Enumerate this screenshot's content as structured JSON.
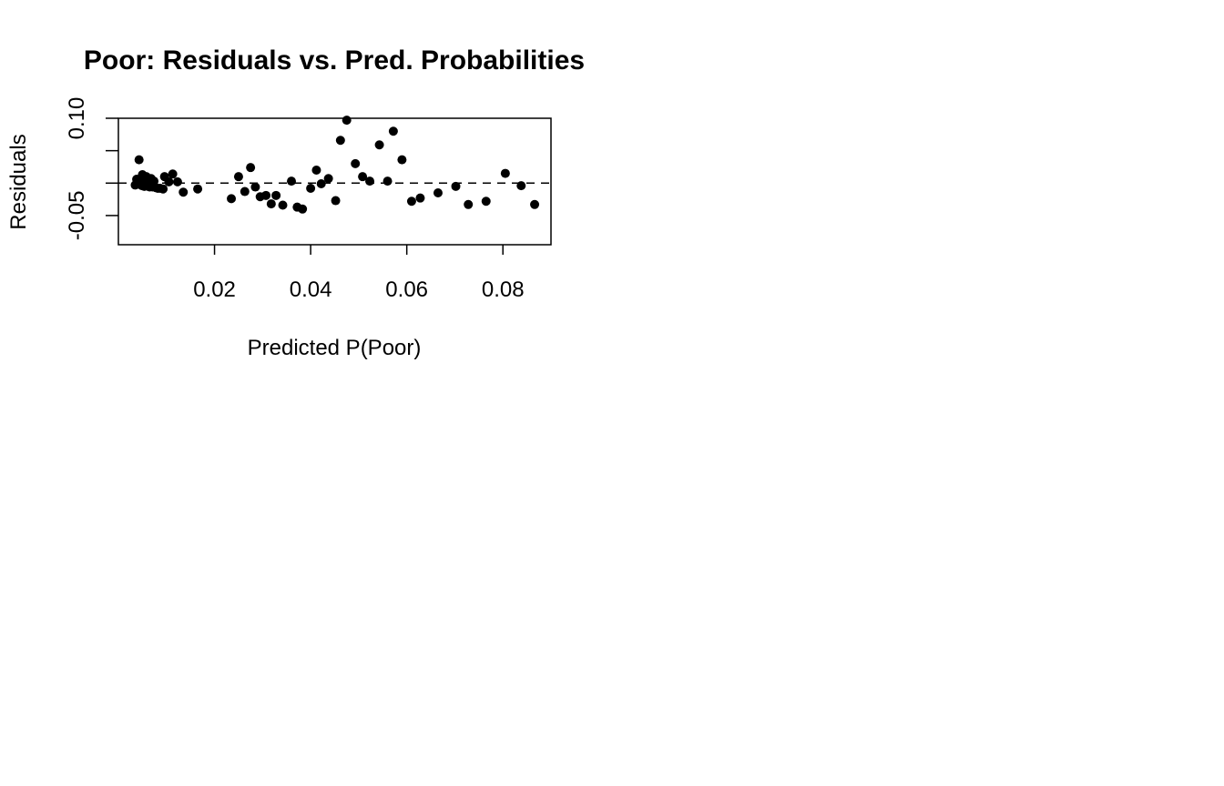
{
  "chart_data": {
    "type": "scatter",
    "title": "Poor: Residuals vs. Pred. Probabilities",
    "xlabel": "Predicted P(Poor)",
    "ylabel": "Residuals",
    "xlim": [
      0.0,
      0.09
    ],
    "ylim": [
      -0.095,
      0.1
    ],
    "x_ticks": [
      0.02,
      0.04,
      0.06,
      0.08
    ],
    "x_tick_labels": [
      "0.02",
      "0.04",
      "0.06",
      "0.08"
    ],
    "y_ticks": [
      -0.05,
      0.0,
      0.05,
      0.1
    ],
    "y_tick_labels": [
      "-0.05",
      "",
      "",
      "0.10"
    ],
    "reference_line": {
      "y": 0,
      "style": "dashed"
    },
    "grid": false,
    "marker_color": "#000000",
    "points": [
      {
        "x": 0.0035,
        "y": -0.003
      },
      {
        "x": 0.0038,
        "y": 0.006
      },
      {
        "x": 0.004,
        "y": -0.001
      },
      {
        "x": 0.0042,
        "y": 0.004
      },
      {
        "x": 0.0043,
        "y": 0.036
      },
      {
        "x": 0.0045,
        "y": 0.001
      },
      {
        "x": 0.0047,
        "y": 0.007
      },
      {
        "x": 0.0049,
        "y": -0.004
      },
      {
        "x": 0.005,
        "y": 0.013
      },
      {
        "x": 0.0052,
        "y": 0.002
      },
      {
        "x": 0.0054,
        "y": -0.005
      },
      {
        "x": 0.0056,
        "y": 0.005
      },
      {
        "x": 0.0058,
        "y": 0.01
      },
      {
        "x": 0.006,
        "y": -0.004
      },
      {
        "x": 0.0063,
        "y": 0.001
      },
      {
        "x": 0.0065,
        "y": -0.006
      },
      {
        "x": 0.0068,
        "y": 0.007
      },
      {
        "x": 0.0071,
        "y": -0.006
      },
      {
        "x": 0.0074,
        "y": 0.003
      },
      {
        "x": 0.0078,
        "y": -0.007
      },
      {
        "x": 0.0082,
        "y": -0.008
      },
      {
        "x": 0.0087,
        "y": -0.008
      },
      {
        "x": 0.0093,
        "y": -0.009
      },
      {
        "x": 0.0096,
        "y": 0.01
      },
      {
        "x": 0.0105,
        "y": 0.002
      },
      {
        "x": 0.0113,
        "y": 0.014
      },
      {
        "x": 0.0123,
        "y": 0.002
      },
      {
        "x": 0.0135,
        "y": -0.014
      },
      {
        "x": 0.0165,
        "y": -0.009
      },
      {
        "x": 0.0235,
        "y": -0.024
      },
      {
        "x": 0.025,
        "y": 0.01
      },
      {
        "x": 0.0263,
        "y": -0.013
      },
      {
        "x": 0.0275,
        "y": 0.024
      },
      {
        "x": 0.0285,
        "y": -0.006
      },
      {
        "x": 0.0295,
        "y": -0.021
      },
      {
        "x": 0.0307,
        "y": -0.019
      },
      {
        "x": 0.0318,
        "y": -0.032
      },
      {
        "x": 0.0328,
        "y": -0.019
      },
      {
        "x": 0.0342,
        "y": -0.034
      },
      {
        "x": 0.036,
        "y": 0.003
      },
      {
        "x": 0.0372,
        "y": -0.037
      },
      {
        "x": 0.0383,
        "y": -0.04
      },
      {
        "x": 0.04,
        "y": -0.008
      },
      {
        "x": 0.0412,
        "y": 0.02
      },
      {
        "x": 0.0422,
        "y": -0.001
      },
      {
        "x": 0.0437,
        "y": 0.007
      },
      {
        "x": 0.0452,
        "y": -0.027
      },
      {
        "x": 0.0462,
        "y": 0.066
      },
      {
        "x": 0.0475,
        "y": 0.097
      },
      {
        "x": 0.0493,
        "y": 0.03
      },
      {
        "x": 0.0508,
        "y": 0.01
      },
      {
        "x": 0.0523,
        "y": 0.003
      },
      {
        "x": 0.0543,
        "y": 0.059
      },
      {
        "x": 0.056,
        "y": 0.003
      },
      {
        "x": 0.0572,
        "y": 0.08
      },
      {
        "x": 0.059,
        "y": 0.036
      },
      {
        "x": 0.061,
        "y": -0.028
      },
      {
        "x": 0.0628,
        "y": -0.023
      },
      {
        "x": 0.0665,
        "y": -0.015
      },
      {
        "x": 0.0702,
        "y": -0.005
      },
      {
        "x": 0.0728,
        "y": -0.033
      },
      {
        "x": 0.0765,
        "y": -0.028
      },
      {
        "x": 0.0805,
        "y": 0.015
      },
      {
        "x": 0.0838,
        "y": -0.004
      },
      {
        "x": 0.0866,
        "y": -0.033
      }
    ]
  }
}
